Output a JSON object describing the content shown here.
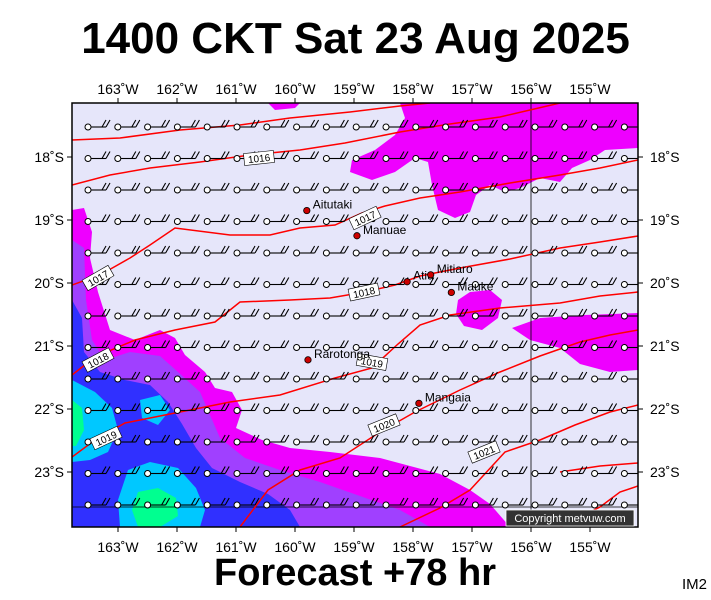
{
  "map": {
    "title": "1400 CKT Sat 23 Aug 2025",
    "subtitle": "Forecast +78 hr",
    "code": "IM2",
    "copyright": "Copyright metvuw.com",
    "colors": {
      "background": "#e6e6fa",
      "rain_light": "#ee00ff",
      "rain_medium": "#a040ff",
      "rain_heavy": "#3030ff",
      "rain_vheavy": "#00c8ff",
      "rain_max": "#00ff90",
      "isobar": "#ff0000",
      "town": "#cc0000"
    },
    "lon_labels": [
      "163˚W",
      "162˚W",
      "161˚W",
      "160˚W",
      "159˚W",
      "158˚W",
      "157˚W",
      "156˚W",
      "155˚W"
    ],
    "lat_labels": [
      "18˚S",
      "19˚S",
      "20˚S",
      "21˚S",
      "22˚S",
      "23˚S"
    ],
    "places": [
      {
        "name": "Aitutaki",
        "lon": -159.8,
        "lat": -18.85
      },
      {
        "name": "Manuae",
        "lon": -158.95,
        "lat": -19.25
      },
      {
        "name": "Atiu",
        "lon": -158.1,
        "lat": -19.98
      },
      {
        "name": "Mitiaro",
        "lon": -157.7,
        "lat": -19.87
      },
      {
        "name": "Mauke",
        "lon": -157.35,
        "lat": -20.15
      },
      {
        "name": "Rarotonga",
        "lon": -159.78,
        "lat": -21.22
      },
      {
        "name": "Mangaia",
        "lon": -157.9,
        "lat": -21.91
      }
    ],
    "isobar_labels": [
      "1016",
      "1017",
      "1017",
      "1018",
      "1018",
      "1019",
      "1019",
      "1020",
      "1021"
    ]
  }
}
